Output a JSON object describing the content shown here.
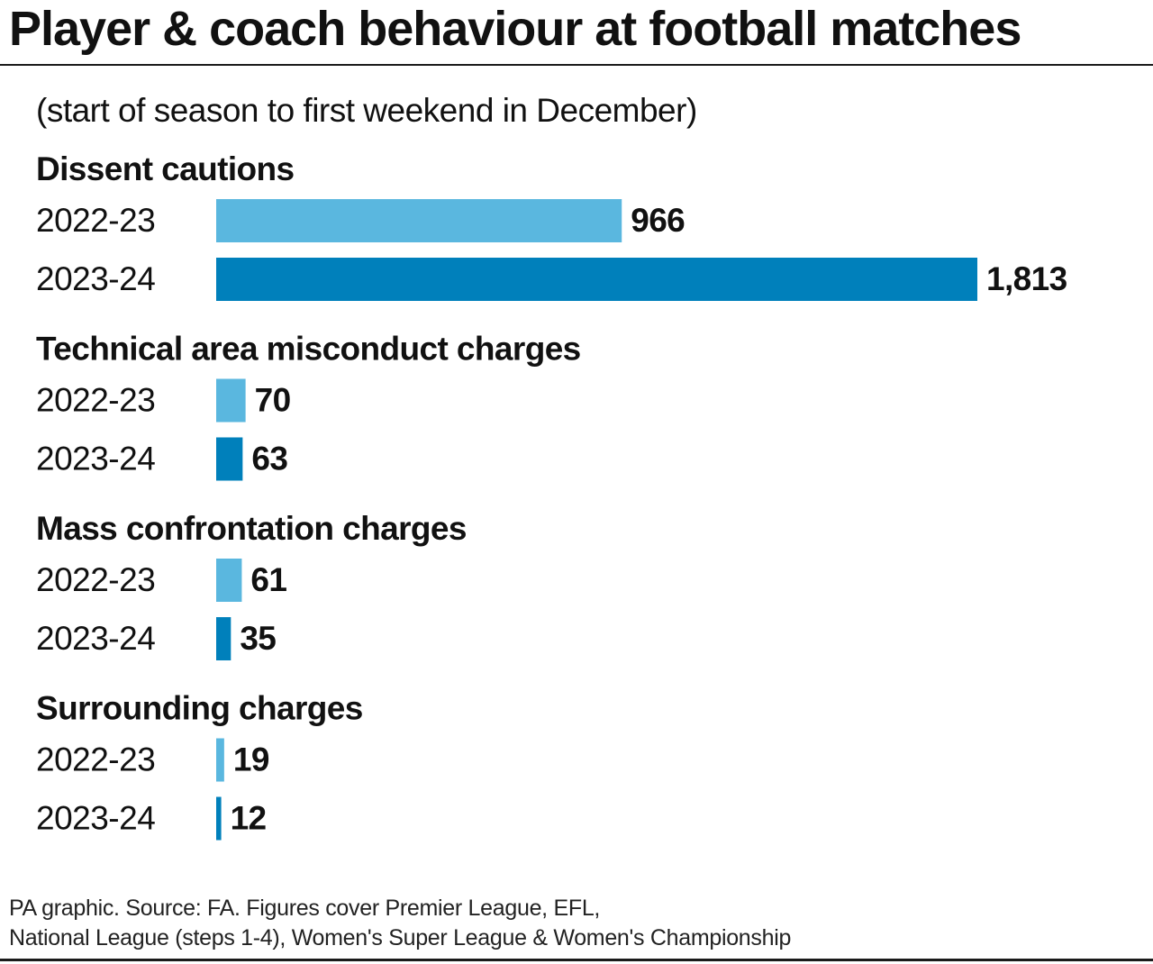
{
  "title": "Player & coach behaviour at football matches",
  "subtitle": "(start of season to first weekend in December)",
  "footer": {
    "line1": "PA graphic. Source: FA. Figures cover Premier League, EFL,",
    "line2": "National League (steps 1-4), Women's Super League & Women's Championship"
  },
  "colors": {
    "season_2022_23": "#5ab7df",
    "season_2023_24": "#0080bb"
  },
  "chart_data": {
    "type": "bar",
    "orientation": "horizontal",
    "series": [
      {
        "values": [
          966,
          70,
          61,
          19
        ],
        "color": "#5ab7df"
      },
      {
        "values": [
          1813,
          63,
          35,
          12
        ],
        "color": "#0080bb"
      }
    ],
    "groups": [
      {
        "title": "Dissent cautions",
        "rows": [
          {
            "label": "2022-23",
            "value": 966,
            "display": "966"
          },
          {
            "label": "2023-24",
            "value": 1813,
            "display": "1,813"
          }
        ]
      },
      {
        "title": "Technical area misconduct charges",
        "rows": [
          {
            "label": "2022-23",
            "value": 70,
            "display": "70"
          },
          {
            "label": "2023-24",
            "value": 63,
            "display": "63"
          }
        ]
      },
      {
        "title": "Mass confrontation charges",
        "rows": [
          {
            "label": "2022-23",
            "value": 61,
            "display": "61"
          },
          {
            "label": "2023-24",
            "value": 35,
            "display": "35"
          }
        ]
      },
      {
        "title": "Surrounding charges",
        "rows": [
          {
            "label": "2022-23",
            "value": 19,
            "display": "19"
          },
          {
            "label": "2023-24",
            "value": 12,
            "display": "12"
          }
        ]
      }
    ],
    "grid": false,
    "legend": "none"
  }
}
